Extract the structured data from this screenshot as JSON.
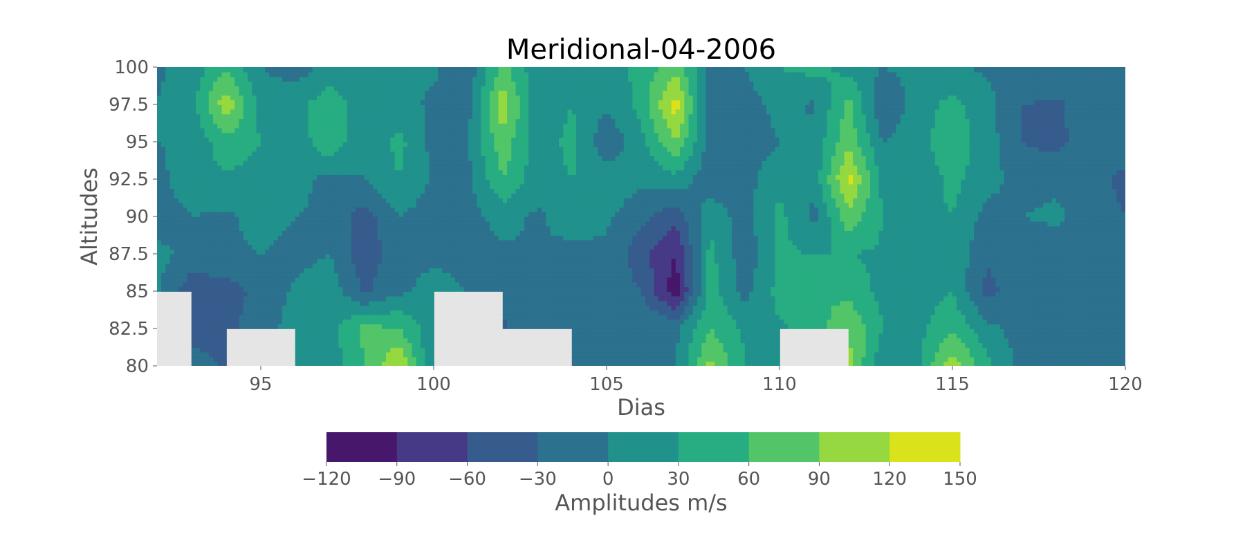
{
  "chart_data": {
    "type": "heatmap",
    "subtype": "filled-contour",
    "title": "Meridional-04-2006",
    "xlabel": "Dias",
    "ylabel": "Altitudes",
    "xlim": [
      92,
      120
    ],
    "ylim": [
      80,
      100
    ],
    "x_ticks": [
      "95",
      "100",
      "105",
      "110",
      "115",
      "120"
    ],
    "y_ticks": [
      "80",
      "82.5",
      "85",
      "87.5",
      "90",
      "92.5",
      "95",
      "97.5",
      "100"
    ],
    "grid": false,
    "missing_color": "#e5e5e5",
    "colorbar": {
      "label": "Amplitudes m/s",
      "orientation": "horizontal",
      "placement": "bottom",
      "levels": [
        -120,
        -90,
        -60,
        -30,
        0,
        30,
        60,
        90,
        120,
        150
      ],
      "tick_labels": [
        "−120",
        "−90",
        "−60",
        "−30",
        "0",
        "30",
        "60",
        "90",
        "120",
        "150"
      ],
      "colors": [
        "#46176a",
        "#463985",
        "#365c8d",
        "#2c718e",
        "#21918c",
        "#27ad81",
        "#52c569",
        "#95d840",
        "#d9e21b"
      ]
    },
    "days": [
      92,
      93,
      94,
      95,
      96,
      97,
      98,
      99,
      100,
      101,
      102,
      103,
      104,
      105,
      106,
      107,
      108,
      109,
      110,
      111,
      112,
      113,
      114,
      115,
      116,
      117,
      118,
      119,
      120
    ],
    "altitudes": [
      80,
      82.5,
      85,
      87.5,
      90,
      92.5,
      95,
      97.5,
      100
    ],
    "amplitudes": [
      [
        -5,
        -10,
        -35,
        null,
        5,
        10,
        55,
        125,
        -8,
        null,
        -40,
        null,
        -5,
        -5,
        -5,
        -5,
        100,
        30,
        20,
        null,
        100,
        5,
        25,
        110,
        40,
        -10,
        -5,
        -15,
        -10
      ],
      [
        null,
        -50,
        -40,
        -10,
        10,
        20,
        70,
        60,
        10,
        null,
        -35,
        -10,
        -20,
        -5,
        0,
        -5,
        60,
        25,
        25,
        40,
        90,
        30,
        20,
        55,
        10,
        -15,
        -10,
        -5,
        -15
      ],
      [
        5,
        -50,
        -45,
        -20,
        5,
        20,
        -35,
        -5,
        10,
        0,
        -20,
        -10,
        -15,
        -5,
        -30,
        -110,
        45,
        -10,
        40,
        60,
        50,
        20,
        15,
        30,
        -40,
        -10,
        -15,
        -10,
        -20
      ],
      [
        10,
        -10,
        -5,
        0,
        -10,
        0,
        -50,
        -10,
        -5,
        -10,
        -5,
        0,
        -10,
        -5,
        -50,
        -90,
        40,
        -20,
        35,
        30,
        30,
        25,
        15,
        20,
        -25,
        -20,
        -15,
        -5,
        -10
      ],
      [
        -20,
        0,
        -5,
        10,
        0,
        -5,
        -45,
        0,
        -15,
        -10,
        10,
        -5,
        15,
        5,
        -20,
        -50,
        20,
        -15,
        40,
        -10,
        80,
        30,
        20,
        30,
        -10,
        0,
        5,
        -10,
        -30
      ],
      [
        -10,
        20,
        25,
        20,
        10,
        -10,
        0,
        30,
        -5,
        -10,
        60,
        15,
        30,
        20,
        5,
        20,
        -20,
        -10,
        20,
        10,
        130,
        20,
        5,
        40,
        10,
        -10,
        -5,
        -15,
        -40
      ],
      [
        0,
        5,
        50,
        30,
        10,
        55,
        0,
        40,
        -10,
        0,
        80,
        10,
        40,
        -25,
        20,
        90,
        -15,
        -20,
        0,
        10,
        80,
        0,
        20,
        50,
        15,
        -30,
        -40,
        -10,
        -10
      ],
      [
        0,
        20,
        110,
        20,
        20,
        50,
        10,
        10,
        -5,
        -10,
        110,
        10,
        30,
        5,
        40,
        135,
        -20,
        -15,
        10,
        -5,
        70,
        -30,
        15,
        40,
        10,
        -30,
        -35,
        -15,
        -20
      ],
      [
        -5,
        10,
        60,
        0,
        -15,
        10,
        0,
        0,
        5,
        -20,
        70,
        10,
        20,
        10,
        40,
        80,
        -5,
        0,
        30,
        40,
        20,
        0,
        10,
        5,
        -5,
        0,
        -10,
        -20,
        -10
      ]
    ]
  }
}
